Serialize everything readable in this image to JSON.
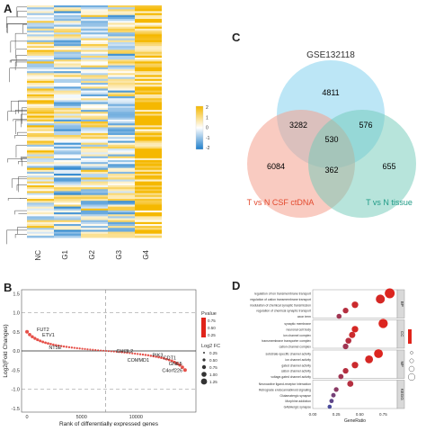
{
  "panels": {
    "a": "A",
    "b": "B",
    "c": "C",
    "d": "D"
  },
  "heatmap": {
    "columns": [
      "NC",
      "G1",
      "G2",
      "G3",
      "G4"
    ],
    "legend_ticks": [
      "2",
      "1",
      "0",
      "-1",
      "-2"
    ],
    "colors": {
      "high": "#f5b800",
      "mid": "#ffffff",
      "low": "#1e7ecb"
    },
    "column_bias": [
      0.25,
      -0.1,
      0.1,
      -0.05,
      0.85
    ]
  },
  "venn": {
    "sets": [
      "GSE132118",
      "T vs N CSF ctDNA",
      "T vs N tissue"
    ],
    "colors": {
      "gse": "#8fd6f0",
      "csf": "#f4a08e",
      "tissue": "#6fc9b8"
    },
    "regions": {
      "gse_only": "4811",
      "gse_csf": "3282",
      "gse_tissue": "576",
      "all": "530",
      "csf_only": "6084",
      "csf_tissue": "362",
      "tissue_only": "655"
    }
  },
  "chart_data": [
    {
      "type": "scatter",
      "panel": "B",
      "xlabel": "Rank of differentially expressed genes",
      "ylabel": "Log2(Fold Changes)",
      "xlim": [
        -500,
        15500
      ],
      "ylim": [
        -1.6,
        1.6
      ],
      "x_ticks": [
        "0",
        "5000",
        "10000"
      ],
      "y_ticks": [
        "1.5",
        "1.0",
        "0.5",
        "0.0",
        "-0.5",
        "-1.0",
        "-1.5"
      ],
      "legend": {
        "pvalue_title": "Pvalue",
        "pvalue_ticks": [
          "0.75",
          "0.50",
          "0.25"
        ],
        "size_title": "Log2 FC",
        "size_ticks": [
          "0.25",
          "0.50",
          "0.75",
          "1.00",
          "1.25"
        ]
      },
      "labels": [
        {
          "text": "FUT2",
          "x": 900,
          "y": 0.52
        },
        {
          "text": "ETV1",
          "x": 1400,
          "y": 0.38
        },
        {
          "text": "NT5E",
          "x": 2000,
          "y": 0.05
        },
        {
          "text": "CHI3L2",
          "x": 8200,
          "y": -0.05
        },
        {
          "text": "COMMD1",
          "x": 9200,
          "y": -0.28
        },
        {
          "text": "PIK3",
          "x": 11500,
          "y": -0.15
        },
        {
          "text": "CDT1",
          "x": 12500,
          "y": -0.22
        },
        {
          "text": "C4orf226",
          "x": 12400,
          "y": -0.55
        },
        {
          "text": "GNE5",
          "x": 13000,
          "y": -0.38
        }
      ]
    },
    {
      "type": "scatter",
      "panel": "D",
      "xlabel": "GeneRatio",
      "x_ticks": [
        "0.00",
        "0.25",
        "0.50",
        "0.75"
      ],
      "facets": [
        "BP",
        "CC",
        "MF",
        "KEGG"
      ],
      "terms": [
        {
          "label": "regulation of ion transmembrane transport",
          "facet": "BP",
          "x": 0.82,
          "p": 0.02
        },
        {
          "label": "regulation of cation transmembrane transport",
          "facet": "BP",
          "x": 0.72,
          "p": 0.05
        },
        {
          "label": "modulation of chemical synaptic transmission",
          "facet": "BP",
          "x": 0.45,
          "p": 0.1
        },
        {
          "label": "regulation of chemical synaptic transport",
          "facet": "BP",
          "x": 0.35,
          "p": 0.2
        },
        {
          "label": "axon term",
          "facet": "BP",
          "x": 0.28,
          "p": 0.3
        },
        {
          "label": "synaptic membrane",
          "facet": "CC",
          "x": 0.75,
          "p": 0.02
        },
        {
          "label": "neuronal cell body",
          "facet": "CC",
          "x": 0.45,
          "p": 0.05
        },
        {
          "label": "ion channel complex",
          "facet": "CC",
          "x": 0.42,
          "p": 0.1
        },
        {
          "label": "transmembrane transporter complex",
          "facet": "CC",
          "x": 0.38,
          "p": 0.2
        },
        {
          "label": "cation channel complex",
          "facet": "CC",
          "x": 0.35,
          "p": 0.3
        },
        {
          "label": "substrate-specific channel activity",
          "facet": "MF",
          "x": 0.7,
          "p": 0.02
        },
        {
          "label": "ion channel activity",
          "facet": "MF",
          "x": 0.6,
          "p": 0.05
        },
        {
          "label": "gated channel activity",
          "facet": "MF",
          "x": 0.45,
          "p": 0.1
        },
        {
          "label": "cation channel activity",
          "facet": "MF",
          "x": 0.35,
          "p": 0.2
        },
        {
          "label": "voltage-gated channel activity",
          "facet": "MF",
          "x": 0.3,
          "p": 0.3
        },
        {
          "label": "Neuroactive ligand-receptor interaction",
          "facet": "KEGG",
          "x": 0.4,
          "p": 0.2
        },
        {
          "label": "Retrograde endocannabinoid signaling",
          "facet": "KEGG",
          "x": 0.25,
          "p": 0.4
        },
        {
          "label": "Glutamatergic synapse",
          "facet": "KEGG",
          "x": 0.22,
          "p": 0.5
        },
        {
          "label": "Morphine addiction",
          "facet": "KEGG",
          "x": 0.2,
          "p": 0.6
        },
        {
          "label": "GABAergic synapse",
          "facet": "KEGG",
          "x": 0.18,
          "p": 0.7
        }
      ]
    }
  ]
}
